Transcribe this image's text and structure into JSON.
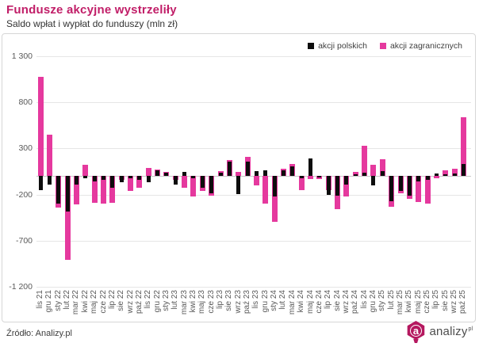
{
  "title": "Fundusze akcyjne wystrzeliły",
  "subtitle": "Saldo wpłat i wypłat do funduszy (mln zł)",
  "source": "Źródło: Analizy.pl",
  "logo": {
    "badge_letter": "a",
    "text": "analizy",
    "sup": "pl",
    "badge_color": "#b5185f"
  },
  "colors": {
    "title": "#c11e68",
    "black_series": "#0d0d0d",
    "pink_series": "#e5399e",
    "grid": "#e6e6e6",
    "zero_line": "#c9c9c9",
    "axis_text": "#595959",
    "panel_border": "#d6d6d6"
  },
  "chart_data": {
    "type": "bar",
    "title": "Fundusze akcyjne wystrzeliły",
    "subtitle": "Saldo wpłat i wypłat do funduszy (mln zł)",
    "bar_style": "overlapped-columns",
    "grid": true,
    "legend_position": "top-right",
    "ylabel": "mln zł",
    "ylim": [
      -1200,
      1300
    ],
    "y_ticks": [
      1300,
      800,
      300,
      -200,
      -700,
      -1200
    ],
    "y_tick_labels": [
      "1 300",
      "800",
      "300",
      "-200",
      "-700",
      "-1 200"
    ],
    "categories": [
      "lis 21",
      "gru 21",
      "sty 22",
      "lut 22",
      "mar 22",
      "kwi 22",
      "maj 22",
      "cze 22",
      "lip 22",
      "sie 22",
      "wrz 22",
      "paź 22",
      "lis 22",
      "gru 22",
      "sty 23",
      "lut 23",
      "mar 23",
      "kwi 23",
      "maj 23",
      "cze 23",
      "lip 23",
      "sie 23",
      "wrz 23",
      "paź 23",
      "lis 23",
      "gru 23",
      "sty 24",
      "lut 24",
      "mar 24",
      "kwi 24",
      "maj 24",
      "cze 24",
      "lip 24",
      "sie 24",
      "wrz 24",
      "paź 24",
      "lis 24",
      "gru 24",
      "sty 25",
      "lut 25",
      "mar 25",
      "kwi 25",
      "maj 25",
      "cze 25",
      "lip 25",
      "sie 25",
      "wrz 25",
      "paź 25"
    ],
    "series": [
      {
        "name": "akcji polskich",
        "color": "#0d0d0d",
        "values": [
          -150,
          -90,
          -300,
          -385,
          -90,
          -20,
          -60,
          -45,
          -130,
          -65,
          -25,
          -45,
          -70,
          60,
          40,
          -95,
          45,
          -20,
          -125,
          -185,
          35,
          155,
          -195,
          160,
          55,
          65,
          -220,
          65,
          110,
          -20,
          195,
          -15,
          -200,
          -210,
          -90,
          20,
          40,
          -100,
          55,
          -270,
          -165,
          -215,
          -60,
          -40,
          25,
          20,
          30,
          130
        ]
      },
      {
        "name": "akcji zagranicznych",
        "color": "#e5399e",
        "values": [
          1080,
          450,
          -345,
          -910,
          -305,
          120,
          -290,
          -300,
          -290,
          -40,
          -160,
          -130,
          85,
          75,
          50,
          -45,
          -130,
          -220,
          -160,
          -215,
          55,
          175,
          45,
          210,
          -100,
          -300,
          -500,
          80,
          130,
          -155,
          -35,
          -30,
          -150,
          -355,
          -225,
          50,
          330,
          125,
          180,
          -330,
          -190,
          -250,
          -285,
          -300,
          -20,
          60,
          80,
          640
        ]
      }
    ]
  }
}
